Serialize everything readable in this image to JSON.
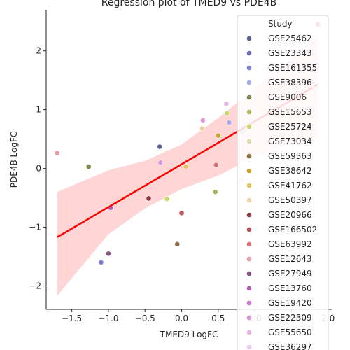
{
  "chart_data": {
    "type": "scatter",
    "title": "Regression plot of TMED9 vs PDE4B",
    "xlabel": "TMED9 LogFC",
    "ylabel": "PDE4B LogFC",
    "xlim": [
      -1.85,
      2.05
    ],
    "ylim": [
      -2.4,
      2.7
    ],
    "xticks": [
      -1.5,
      -1.0,
      -0.5,
      0.0,
      0.5,
      1.0,
      1.5,
      2.0
    ],
    "xtick_labels": [
      "−1.5",
      "−1.0",
      "−0.5",
      "0.0",
      "0.5",
      "1.0",
      "1.5",
      "2.0"
    ],
    "yticks": [
      -2,
      -1,
      0,
      1,
      2
    ],
    "ytick_labels": [
      "−2",
      "−1",
      "0",
      "1",
      "2"
    ],
    "grid": false,
    "legend": {
      "title": "Study",
      "placement": "right",
      "entries": [
        {
          "label": "GSE25462",
          "color": "#5b5f93"
        },
        {
          "label": "GSE23343",
          "color": "#6a6db8"
        },
        {
          "label": "GSE161355",
          "color": "#7b7fd8"
        },
        {
          "label": "GSE38396",
          "color": "#a9acec"
        },
        {
          "label": "GSE9006",
          "color": "#7a8a4e"
        },
        {
          "label": "GSE15653",
          "color": "#a5b55f"
        },
        {
          "label": "GSE25724",
          "color": "#c8d86a"
        },
        {
          "label": "GSE73034",
          "color": "#dedcab"
        },
        {
          "label": "GSE59363",
          "color": "#8e6d3f"
        },
        {
          "label": "GSE38642",
          "color": "#c9a23b"
        },
        {
          "label": "GSE41762",
          "color": "#e8c25e"
        },
        {
          "label": "GSE50397",
          "color": "#efd3a8"
        },
        {
          "label": "GSE20966",
          "color": "#8e3e42"
        },
        {
          "label": "GSE166502",
          "color": "#b8535a"
        },
        {
          "label": "GSE63992",
          "color": "#d86f76"
        },
        {
          "label": "GSE12643",
          "color": "#ec9ba1"
        },
        {
          "label": "GSE27949",
          "color": "#8a4e86"
        },
        {
          "label": "GSE13760",
          "color": "#b25db0"
        },
        {
          "label": "GSE19420",
          "color": "#cf76cf"
        },
        {
          "label": "GSE22309",
          "color": "#dd96da"
        },
        {
          "label": "GSE55650",
          "color": "#e6b4e3"
        },
        {
          "label": "GSE36297",
          "color": "#eecbea"
        }
      ]
    },
    "points": [
      {
        "x": -1.7,
        "y": 0.26,
        "color": "#ec9ba1"
      },
      {
        "x": -1.27,
        "y": 0.03,
        "color": "#7a8a4e"
      },
      {
        "x": -1.1,
        "y": -1.6,
        "color": "#7b7fd8"
      },
      {
        "x": -1.0,
        "y": -1.45,
        "color": "#8a4e86"
      },
      {
        "x": -0.97,
        "y": -0.67,
        "color": "#b25db0"
      },
      {
        "x": -0.45,
        "y": -0.51,
        "color": "#8e3e42"
      },
      {
        "x": -0.3,
        "y": 0.37,
        "color": "#5b5f93"
      },
      {
        "x": -0.29,
        "y": 0.1,
        "color": "#dd96da"
      },
      {
        "x": -0.2,
        "y": -0.52,
        "color": "#c8d86a"
      },
      {
        "x": -0.06,
        "y": -1.29,
        "color": "#8e6d3f"
      },
      {
        "x": 0.0,
        "y": -0.76,
        "color": "#b8535a"
      },
      {
        "x": 0.06,
        "y": 0.03,
        "color": "#e8c25e"
      },
      {
        "x": 0.28,
        "y": 0.68,
        "color": "#efd3a8"
      },
      {
        "x": 0.29,
        "y": 0.82,
        "color": "#dd96da"
      },
      {
        "x": 0.46,
        "y": -0.4,
        "color": "#a5b55f"
      },
      {
        "x": 0.47,
        "y": 0.06,
        "color": "#d86f76"
      },
      {
        "x": 0.5,
        "y": 0.56,
        "color": "#c9a23b"
      },
      {
        "x": 0.61,
        "y": 1.1,
        "color": "#e6b4e3"
      },
      {
        "x": 0.62,
        "y": 0.94,
        "color": "#c8d86a"
      },
      {
        "x": 0.65,
        "y": 0.78,
        "color": "#a9acec"
      },
      {
        "x": 0.82,
        "y": -0.2,
        "color": "#dedcab"
      },
      {
        "x": 1.86,
        "y": 2.45,
        "color": "#b8535a"
      }
    ],
    "regression": {
      "x": [
        -1.7,
        1.86
      ],
      "y": [
        -1.17,
        1.43
      ],
      "color": "#ff0000",
      "ci_upper": [
        [
          -1.7,
          -0.4
        ],
        [
          -1.0,
          -0.03
        ],
        [
          -0.5,
          0.13
        ],
        [
          0.0,
          0.41
        ],
        [
          0.5,
          0.86
        ],
        [
          1.0,
          1.36
        ],
        [
          1.5,
          1.88
        ],
        [
          1.86,
          2.28
        ]
      ],
      "ci_lower": [
        [
          -1.7,
          -2.17
        ],
        [
          -1.0,
          -1.12
        ],
        [
          -0.5,
          -0.68
        ],
        [
          0.0,
          -0.35
        ],
        [
          0.5,
          -0.12
        ],
        [
          1.0,
          0.2
        ],
        [
          1.5,
          0.42
        ],
        [
          1.86,
          0.52
        ]
      ]
    }
  }
}
